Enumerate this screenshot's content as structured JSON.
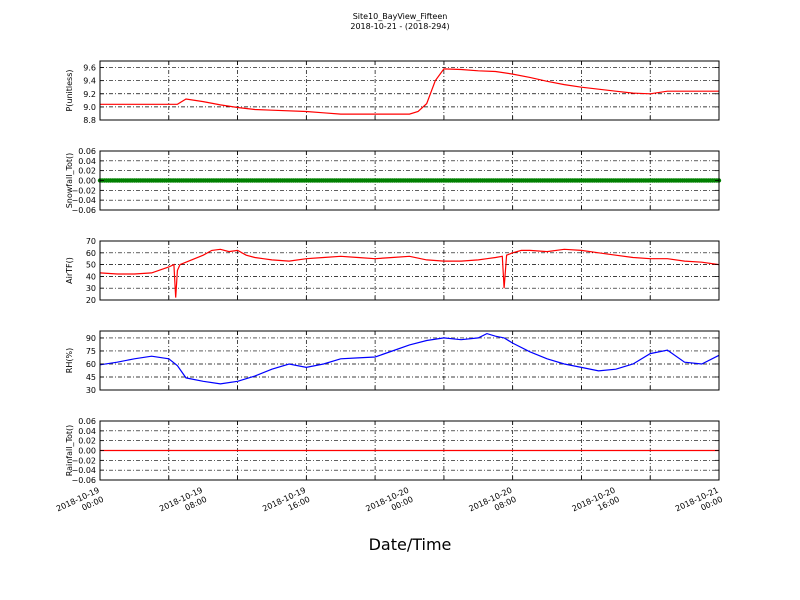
{
  "title": "Site10_BayView_Fifteen",
  "subtitle": "2018-10-21 - (2018-294)",
  "xlabel": "Date/Time",
  "x_ticks": [
    {
      "line1": "2018-10-19",
      "line2": "00:00"
    },
    {
      "line1": "2018-10-19",
      "line2": "08:00"
    },
    {
      "line1": "2018-10-19",
      "line2": "16:00"
    },
    {
      "line1": "2018-10-20",
      "line2": "00:00"
    },
    {
      "line1": "2018-10-20",
      "line2": "08:00"
    },
    {
      "line1": "2018-10-20",
      "line2": "16:00"
    },
    {
      "line1": "2018-10-21",
      "line2": "00:00"
    }
  ],
  "chart_data": [
    {
      "type": "line",
      "ylabel": "P(unitless)",
      "ylim": [
        8.8,
        9.7
      ],
      "yticks": [
        "8.8",
        "9.0",
        "9.2",
        "9.4",
        "9.6"
      ],
      "ytick_values": [
        8.8,
        9.0,
        9.2,
        9.4,
        9.6
      ],
      "grid": true,
      "color": "#ff0000",
      "x_hours": [
        0,
        4,
        8,
        9,
        10,
        12,
        14,
        16,
        18,
        20,
        24,
        26,
        28,
        30,
        32,
        34,
        35,
        36,
        37,
        38,
        39,
        40,
        42,
        44,
        46,
        48,
        50,
        52,
        54,
        56,
        58,
        60,
        62,
        64,
        66,
        68,
        70,
        72
      ],
      "values": [
        9.04,
        9.04,
        9.04,
        9.04,
        9.12,
        9.08,
        9.03,
        8.99,
        8.96,
        8.95,
        8.93,
        8.91,
        8.89,
        8.89,
        8.89,
        8.89,
        8.89,
        8.89,
        8.93,
        9.05,
        9.4,
        9.58,
        9.57,
        9.55,
        9.54,
        9.5,
        9.45,
        9.39,
        9.34,
        9.3,
        9.27,
        9.24,
        9.21,
        9.2,
        9.24,
        9.24,
        9.24,
        9.24
      ]
    },
    {
      "type": "scatter",
      "ylabel": "Snowfall_Tot()",
      "ylim": [
        -0.06,
        0.06
      ],
      "yticks": [
        "−0.06",
        "−0.04",
        "−0.02",
        "0.00",
        "0.02",
        "0.04",
        "0.06"
      ],
      "ytick_values": [
        -0.06,
        -0.04,
        -0.02,
        0.0,
        0.02,
        0.04,
        0.06
      ],
      "grid": true,
      "color": "#008000",
      "x_hours": [
        0,
        72
      ],
      "values": [
        0.0,
        0.0
      ]
    },
    {
      "type": "line",
      "ylabel": "AirTF()",
      "ylim": [
        20,
        70
      ],
      "yticks": [
        "20",
        "30",
        "40",
        "50",
        "60",
        "70"
      ],
      "ytick_values": [
        20,
        30,
        40,
        50,
        60,
        70
      ],
      "grid": true,
      "color": "#ff0000",
      "x_hours": [
        0,
        2,
        4,
        6,
        8,
        8.6,
        8.8,
        9,
        9.3,
        10,
        11,
        12,
        13,
        14,
        15,
        16,
        17,
        18,
        19,
        20,
        22,
        24,
        26,
        28,
        30,
        32,
        34,
        36,
        38,
        40,
        42,
        44,
        45,
        46,
        46.8,
        47,
        47.3,
        48,
        49,
        50,
        52,
        54,
        56,
        58,
        60,
        62,
        64,
        66,
        68,
        70,
        72
      ],
      "values": [
        43,
        42,
        42,
        43,
        48,
        50,
        22,
        45,
        50,
        52,
        55,
        58,
        62,
        63,
        61,
        62,
        58,
        56,
        55,
        54,
        53,
        55,
        56,
        57,
        56,
        55,
        56,
        57,
        54,
        53,
        53,
        54,
        55,
        56,
        57,
        30,
        58,
        60,
        62,
        62,
        61,
        63,
        62,
        60,
        58,
        56,
        55,
        55,
        53,
        52,
        50
      ]
    },
    {
      "type": "line",
      "ylabel": "RH(%)",
      "ylim": [
        30,
        98
      ],
      "yticks": [
        "30",
        "45",
        "60",
        "75",
        "90"
      ],
      "ytick_values": [
        30,
        45,
        60,
        75,
        90
      ],
      "grid": true,
      "color": "#0000ff",
      "x_hours": [
        0,
        2,
        4,
        6,
        8,
        9,
        10,
        12,
        14,
        16,
        18,
        20,
        22,
        24,
        26,
        28,
        30,
        32,
        34,
        36,
        38,
        40,
        42,
        44,
        45,
        46,
        47,
        48,
        50,
        52,
        54,
        56,
        58,
        60,
        62,
        64,
        66,
        68,
        70,
        72
      ],
      "values": [
        59,
        62,
        66,
        69,
        66,
        58,
        44,
        40,
        37,
        40,
        46,
        54,
        60,
        56,
        60,
        66,
        67,
        68,
        75,
        82,
        87,
        90,
        88,
        90,
        95,
        92,
        90,
        84,
        74,
        66,
        60,
        56,
        52,
        54,
        60,
        72,
        76,
        62,
        60,
        70
      ]
    },
    {
      "type": "line",
      "ylabel": "Rainfall_Tot()",
      "ylim": [
        -0.06,
        0.06
      ],
      "yticks": [
        "−0.06",
        "−0.04",
        "−0.02",
        "0.00",
        "0.02",
        "0.04",
        "0.06"
      ],
      "ytick_values": [
        -0.06,
        -0.04,
        -0.02,
        0.0,
        0.02,
        0.04,
        0.06
      ],
      "grid": true,
      "color": "#ff0000",
      "x_hours": [
        0,
        72
      ],
      "values": [
        0.0,
        0.0
      ]
    }
  ]
}
